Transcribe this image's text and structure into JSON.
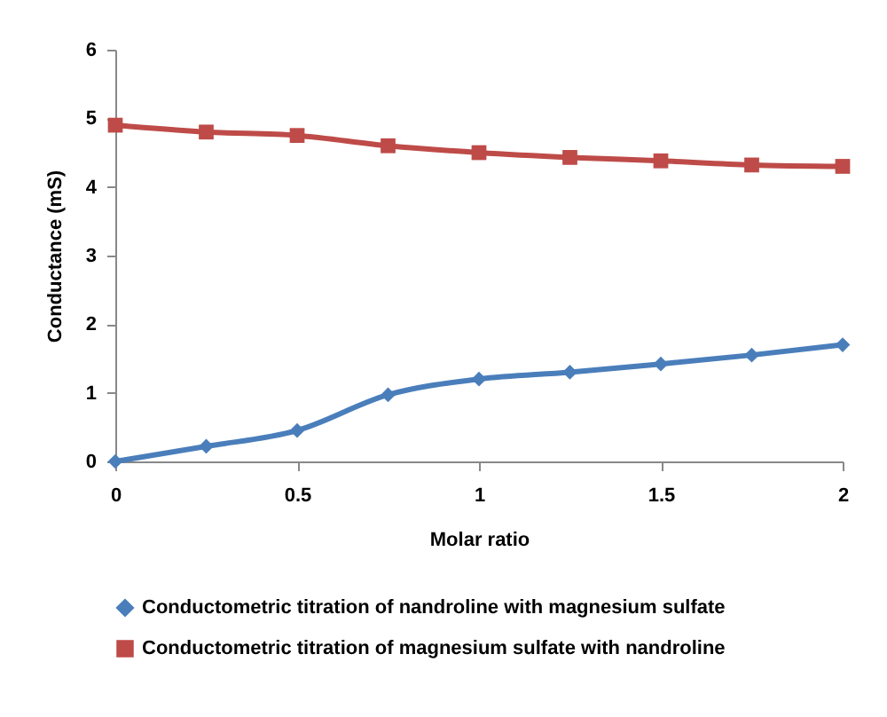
{
  "chart_data": {
    "type": "line",
    "xlabel": "Molar ratio",
    "ylabel": "Conductance (mS)",
    "x": [
      0,
      0.25,
      0.5,
      0.75,
      1,
      1.25,
      1.5,
      1.75,
      2
    ],
    "series": [
      {
        "name": "Conductometric titration of nandroline  with magnesium sulfate",
        "color": "#4a7ebb",
        "marker": "diamond",
        "values": [
          0,
          0.22,
          0.45,
          0.97,
          1.2,
          1.3,
          1.42,
          1.55,
          1.7
        ]
      },
      {
        "name": "Conductometric titration of magnesium  sulfate with nandroline",
        "color": "#be4b48",
        "marker": "square",
        "values": [
          4.9,
          4.8,
          4.75,
          4.6,
          4.5,
          4.43,
          4.38,
          4.32,
          4.3
        ]
      }
    ],
    "xlim": [
      0,
      2
    ],
    "xticks": [
      0,
      0.5,
      1,
      1.5,
      2
    ],
    "ylim": [
      0,
      6
    ],
    "yticks": [
      0,
      1,
      2,
      3,
      4,
      5,
      6
    ],
    "grid": false,
    "legend": "bottom"
  }
}
